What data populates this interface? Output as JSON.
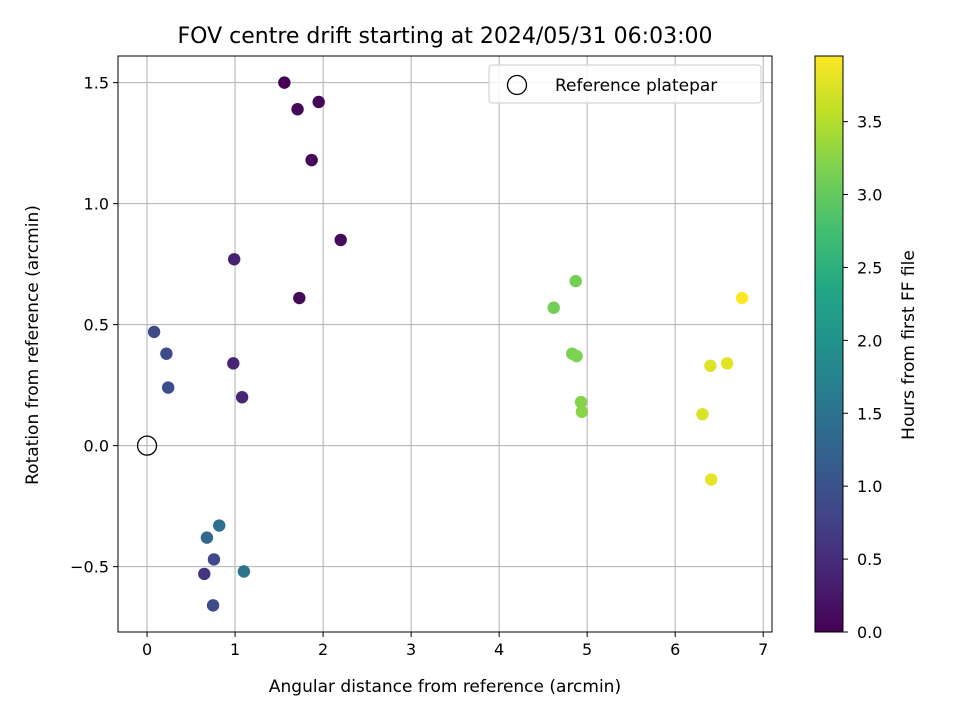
{
  "chart_data": {
    "type": "scatter",
    "title": "FOV centre drift starting at 2024/05/31 06:03:00",
    "xlabel": "Angular distance from reference (arcmin)",
    "ylabel": "Rotation from reference (arcmin)",
    "xlim": [
      -0.33,
      7.1
    ],
    "ylim": [
      -0.77,
      1.61
    ],
    "xticks": [
      0,
      1,
      2,
      3,
      4,
      5,
      6,
      7
    ],
    "xtick_labels": [
      "0",
      "1",
      "2",
      "3",
      "4",
      "5",
      "6",
      "7"
    ],
    "yticks": [
      -0.5,
      0.0,
      0.5,
      1.0,
      1.5
    ],
    "ytick_labels": [
      "−0.5",
      "0.0",
      "0.5",
      "1.0",
      "1.5"
    ],
    "grid": true,
    "colormap": "viridis",
    "colorbar": {
      "label": "Hours from first FF file",
      "range": [
        0.0,
        3.95
      ],
      "ticks": [
        0.0,
        0.5,
        1.0,
        1.5,
        2.0,
        2.5,
        3.0,
        3.5
      ],
      "tick_labels": [
        "0.0",
        "0.5",
        "1.0",
        "1.5",
        "2.0",
        "2.5",
        "3.0",
        "3.5"
      ]
    },
    "legend": {
      "placement": "upper right",
      "entries": [
        {
          "label": "Reference platepar",
          "marker": "open-circle"
        }
      ]
    },
    "reference_point": {
      "x": 0.0,
      "y": 0.0
    },
    "points": [
      {
        "x": 1.56,
        "y": 1.5,
        "c": 0.0
      },
      {
        "x": 1.71,
        "y": 1.39,
        "c": 0.05
      },
      {
        "x": 1.95,
        "y": 1.42,
        "c": 0.05
      },
      {
        "x": 1.87,
        "y": 1.18,
        "c": 0.08
      },
      {
        "x": 2.2,
        "y": 0.85,
        "c": 0.1
      },
      {
        "x": 1.73,
        "y": 0.61,
        "c": 0.1
      },
      {
        "x": 0.99,
        "y": 0.77,
        "c": 0.35
      },
      {
        "x": 0.98,
        "y": 0.34,
        "c": 0.4
      },
      {
        "x": 1.08,
        "y": 0.2,
        "c": 0.42
      },
      {
        "x": 0.08,
        "y": 0.47,
        "c": 0.9
      },
      {
        "x": 0.22,
        "y": 0.38,
        "c": 0.9
      },
      {
        "x": 0.24,
        "y": 0.24,
        "c": 0.92
      },
      {
        "x": 0.65,
        "y": -0.53,
        "c": 0.6
      },
      {
        "x": 0.76,
        "y": -0.47,
        "c": 0.85
      },
      {
        "x": 0.75,
        "y": -0.66,
        "c": 0.9
      },
      {
        "x": 0.68,
        "y": -0.38,
        "c": 1.35
      },
      {
        "x": 0.82,
        "y": -0.33,
        "c": 1.45
      },
      {
        "x": 1.1,
        "y": -0.52,
        "c": 1.55
      },
      {
        "x": 4.62,
        "y": 0.57,
        "c": 3.1
      },
      {
        "x": 4.87,
        "y": 0.68,
        "c": 3.12
      },
      {
        "x": 4.83,
        "y": 0.38,
        "c": 3.15
      },
      {
        "x": 4.88,
        "y": 0.37,
        "c": 3.18
      },
      {
        "x": 4.93,
        "y": 0.18,
        "c": 3.22
      },
      {
        "x": 4.94,
        "y": 0.14,
        "c": 3.25
      },
      {
        "x": 6.76,
        "y": 0.61,
        "c": 3.95
      },
      {
        "x": 6.4,
        "y": 0.33,
        "c": 3.75
      },
      {
        "x": 6.59,
        "y": 0.34,
        "c": 3.78
      },
      {
        "x": 6.31,
        "y": 0.13,
        "c": 3.72
      },
      {
        "x": 6.41,
        "y": -0.14,
        "c": 3.8
      }
    ]
  }
}
